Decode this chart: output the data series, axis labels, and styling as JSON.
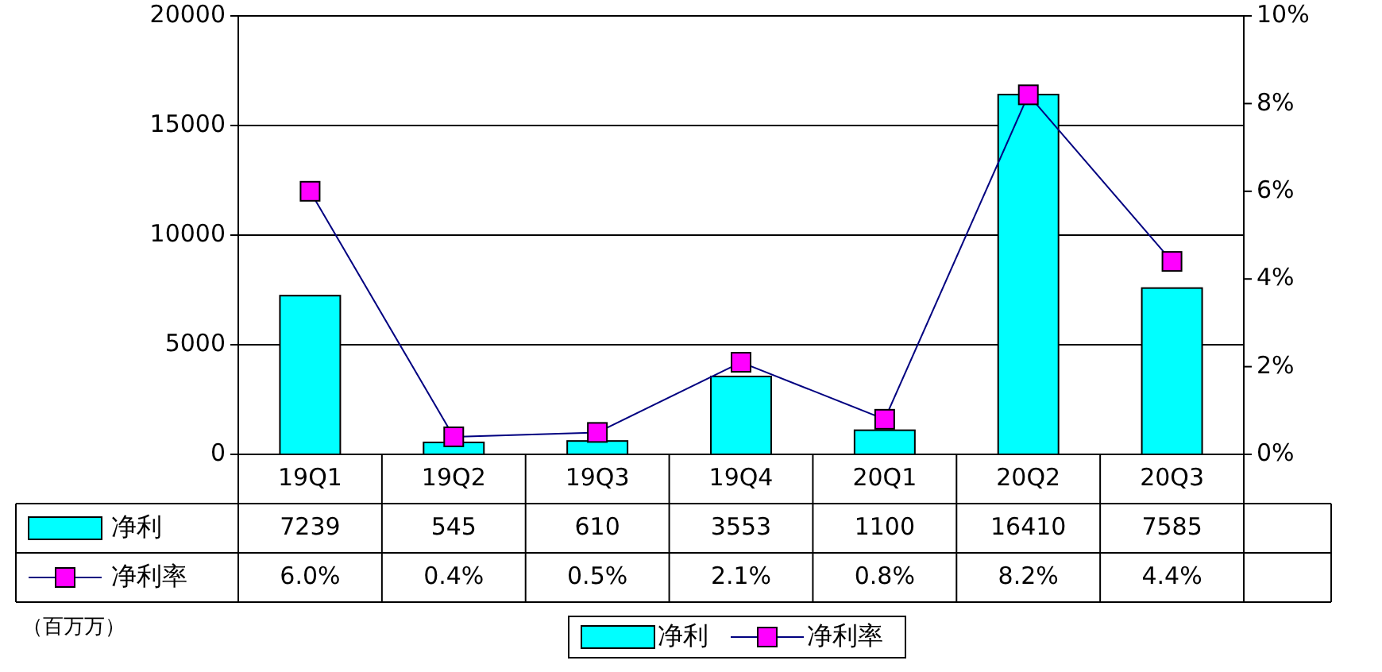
{
  "chart_data": {
    "type": "bar",
    "categories": [
      "19Q1",
      "19Q2",
      "19Q3",
      "19Q4",
      "20Q1",
      "20Q2",
      "20Q3"
    ],
    "series": [
      {
        "name": "净利",
        "color": "#00ffff",
        "values": [
          7239,
          545,
          610,
          3553,
          1100,
          16410,
          7585
        ],
        "value_labels": [
          "7239",
          "545",
          "610",
          "3553",
          "1100",
          "16410",
          "7585"
        ]
      },
      {
        "name": "净利率",
        "type": "line",
        "axis": "y2",
        "color": "#ff00ff",
        "marker": "square",
        "values": [
          6.0,
          0.4,
          0.5,
          2.1,
          0.8,
          8.2,
          4.4
        ],
        "value_labels": [
          "6.0%",
          "0.4%",
          "0.5%",
          "2.1%",
          "0.8%",
          "8.2%",
          "4.4%"
        ]
      }
    ],
    "ylim": [
      0,
      20000
    ],
    "yticks": [
      0,
      5000,
      10000,
      15000,
      20000
    ],
    "y2lim": [
      0,
      10
    ],
    "y2ticks": [
      {
        "value": 0,
        "label": "0%"
      },
      {
        "value": 2,
        "label": "2%"
      },
      {
        "value": 4,
        "label": "4%"
      },
      {
        "value": 6,
        "label": "6%"
      },
      {
        "value": 8,
        "label": "8%"
      },
      {
        "value": 10,
        "label": "10%"
      }
    ],
    "grid": "y",
    "legend": "bottom",
    "data_labels": true,
    "annotations": [
      "（百万万）"
    ]
  }
}
